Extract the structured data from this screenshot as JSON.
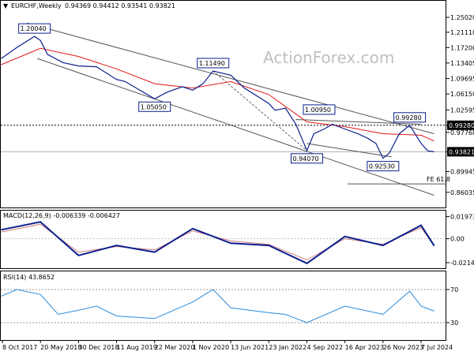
{
  "header": {
    "arrow": "▼",
    "symbol": "EURCHF,Weekly",
    "ohlc": "0.94369 0.94412 0.93541 0.93821"
  },
  "watermark": "ActionForex.com",
  "colors": {
    "price": "#0b1e8c",
    "ma": "#e01919",
    "channel": "#555555",
    "macd": "#0b1e8c",
    "signal": "#d08080",
    "rsi": "#2a8ad8",
    "tag_border": "#0b1e8c",
    "tag_bg": "#ffffff",
    "marker_bg": "#000000"
  },
  "chart_data": [
    {
      "type": "line",
      "panel": "price",
      "yscale": "log",
      "ylim": [
        0.84,
        1.28
      ],
      "y_ticks": [
        "1.25020",
        "1.21110",
        "1.17200",
        "1.13405",
        "1.09695",
        "1.06150",
        "1.02595",
        "0.99280",
        "0.97768",
        "0.93821",
        "0.89945",
        "0.86035"
      ],
      "y_tick_values": [
        1.2502,
        1.2111,
        1.172,
        1.13405,
        1.09695,
        1.0615,
        1.02595,
        0.9928,
        0.97768,
        0.93821,
        0.89945,
        0.86035
      ],
      "x_labels": [
        "8 Oct 2017",
        "20 May 2018",
        "30 Dec 2018",
        "11 Aug 2019",
        "22 Mar 2020",
        "1 Nov 2020",
        "13 Jun 2021",
        "23 Jan 2022",
        "4 Sep 2022",
        "16 Apr 2023",
        "26 Nov 2023",
        "7 Jul 2024"
      ],
      "x_label_dates": [
        "2017-10-08",
        "2018-05-20",
        "2018-12-30",
        "2019-08-11",
        "2020-03-22",
        "2020-11-01",
        "2021-06-13",
        "2022-01-23",
        "2022-09-04",
        "2023-04-16",
        "2023-11-26",
        "2024-07-07"
      ],
      "series": [
        {
          "name": "EURCHF",
          "x": [
            "2017-10-01",
            "2018-01-01",
            "2018-04-15",
            "2018-05-20",
            "2018-07-01",
            "2018-10-01",
            "2018-12-30",
            "2019-04-15",
            "2019-08-11",
            "2019-10-01",
            "2020-03-22",
            "2020-06-01",
            "2020-09-01",
            "2020-11-01",
            "2021-01-01",
            "2021-03-01",
            "2021-06-13",
            "2021-09-01",
            "2022-01-23",
            "2022-03-01",
            "2022-05-01",
            "2022-07-01",
            "2022-09-04",
            "2022-10-15",
            "2022-12-15",
            "2023-02-01",
            "2023-04-16",
            "2023-07-01",
            "2023-09-01",
            "2023-10-15",
            "2023-11-26",
            "2024-01-01",
            "2024-03-01",
            "2024-05-01",
            "2024-07-07",
            "2024-08-15",
            "2024-09-22"
          ],
          "y": [
            1.145,
            1.172,
            1.2004,
            1.19,
            1.155,
            1.135,
            1.127,
            1.125,
            1.095,
            1.09,
            1.0505,
            1.065,
            1.078,
            1.07,
            1.085,
            1.1149,
            1.105,
            1.075,
            1.04,
            1.025,
            1.03,
            0.995,
            0.9407,
            0.975,
            0.985,
            0.995,
            0.985,
            0.975,
            0.965,
            0.955,
            0.9253,
            0.935,
            0.975,
            0.9928,
            0.955,
            0.94,
            0.93821
          ]
        },
        {
          "name": "MA",
          "x": [
            "2017-10-01",
            "2018-05-20",
            "2018-12-30",
            "2019-08-11",
            "2020-03-22",
            "2020-11-01",
            "2021-06-13",
            "2022-01-23",
            "2022-09-04",
            "2023-04-16",
            "2023-11-26",
            "2024-07-07",
            "2024-09-22"
          ],
          "y": [
            1.13,
            1.17,
            1.15,
            1.12,
            1.085,
            1.075,
            1.09,
            1.06,
            1.0,
            0.99,
            0.975,
            0.972,
            0.96
          ]
        }
      ],
      "annotations": [
        {
          "text": "1.20040",
          "x": "2018-04-15",
          "y": 1.2004,
          "anchor": "above"
        },
        {
          "text": "1.05050",
          "x": "2020-03-22",
          "y": 1.0505,
          "anchor": "below"
        },
        {
          "text": "1.11490",
          "x": "2021-03-01",
          "y": 1.1149,
          "anchor": "above"
        },
        {
          "text": "1.00950",
          "x": "2022-11-15",
          "y": 1.0095,
          "anchor": "above"
        },
        {
          "text": "0.94070",
          "x": "2022-09-04",
          "y": 0.9407,
          "anchor": "below"
        },
        {
          "text": "0.92530",
          "x": "2023-11-26",
          "y": 0.9253,
          "anchor": "below"
        },
        {
          "text": "0.99280",
          "x": "2024-05-01",
          "y": 0.9928,
          "anchor": "above"
        }
      ],
      "levels": [
        {
          "text": "0.99280",
          "y": 0.9928,
          "style": "dotted",
          "marker": true
        },
        {
          "text": "0.93821",
          "y": 0.93821,
          "style": "solid-light",
          "marker": true
        }
      ],
      "fe_label": "FE 61.8"
    },
    {
      "type": "line",
      "panel": "macd",
      "title": "MACD(12,26,9) -0.006339 -0.006427",
      "ylim": [
        -0.025,
        0.023
      ],
      "y_ticks": [
        "0.019733",
        "0.00",
        "-0.021424"
      ],
      "y_tick_values": [
        0.019733,
        0,
        -0.021424
      ],
      "series": [
        {
          "name": "MACD",
          "x": [
            "2017-10-01",
            "2018-05-20",
            "2018-12-30",
            "2019-08-11",
            "2020-03-22",
            "2020-11-01",
            "2021-06-13",
            "2022-01-23",
            "2022-09-04",
            "2023-04-16",
            "2023-11-26",
            "2024-07-07",
            "2024-09-22"
          ],
          "y": [
            0.008,
            0.015,
            -0.015,
            -0.006,
            -0.012,
            0.009,
            -0.004,
            -0.006,
            -0.022,
            0.002,
            -0.006,
            0.012,
            -0.006339
          ]
        },
        {
          "name": "Signal",
          "x": [
            "2017-10-01",
            "2018-05-20",
            "2018-12-30",
            "2019-08-11",
            "2020-03-22",
            "2020-11-01",
            "2021-06-13",
            "2022-01-23",
            "2022-09-04",
            "2023-04-16",
            "2023-11-26",
            "2024-07-07",
            "2024-09-22"
          ],
          "y": [
            0.006,
            0.013,
            -0.012,
            -0.007,
            -0.01,
            0.007,
            -0.002,
            -0.005,
            -0.019,
            0.0,
            -0.005,
            0.01,
            -0.006427
          ]
        }
      ]
    },
    {
      "type": "line",
      "panel": "rsi",
      "title": "RSI(14) 43.8652",
      "ylim": [
        10,
        90
      ],
      "y_ticks": [
        "70",
        "30"
      ],
      "y_tick_values": [
        70,
        30
      ],
      "series": [
        {
          "name": "RSI",
          "x": [
            "2017-10-01",
            "2018-01-01",
            "2018-05-20",
            "2018-09-01",
            "2018-12-30",
            "2019-04-15",
            "2019-08-11",
            "2020-03-22",
            "2020-11-01",
            "2021-03-01",
            "2021-06-13",
            "2022-01-23",
            "2022-05-01",
            "2022-09-04",
            "2023-04-16",
            "2023-11-26",
            "2024-05-01",
            "2024-07-07",
            "2024-09-22"
          ],
          "y": [
            62,
            70,
            64,
            40,
            45,
            50,
            38,
            35,
            55,
            70,
            48,
            42,
            40,
            30,
            50,
            40,
            68,
            50,
            43.8652
          ]
        }
      ]
    }
  ]
}
